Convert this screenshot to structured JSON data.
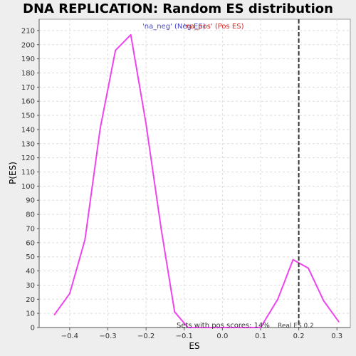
{
  "chart_data": {
    "type": "line",
    "title": "DNA REPLICATION: Random ES distribution",
    "xlabel": "ES",
    "ylabel": "P(ES)",
    "xlim": [
      -0.48,
      0.335
    ],
    "ylim": [
      0,
      218
    ],
    "xticks": [
      -0.4,
      -0.3,
      -0.2,
      -0.1,
      0.0,
      0.1,
      0.2,
      0.3
    ],
    "xtick_labels": [
      "−0.4",
      "−0.3",
      "−0.2",
      "−0.1",
      "0.0",
      "0.1",
      "0.2",
      "0.3"
    ],
    "yticks": [
      0,
      10,
      20,
      30,
      40,
      50,
      60,
      70,
      80,
      90,
      100,
      110,
      120,
      130,
      140,
      150,
      160,
      170,
      180,
      190,
      200,
      210
    ],
    "grid": true,
    "series": [
      {
        "color": "#ee44ee",
        "x": [
          -0.44,
          -0.4,
          -0.36,
          -0.32,
          -0.28,
          -0.24,
          -0.2,
          -0.16,
          -0.125,
          -0.09,
          -0.05,
          0.0,
          0.05,
          0.1,
          0.145,
          0.185,
          0.225,
          0.265,
          0.305
        ],
        "y": [
          9,
          24,
          62,
          141,
          196,
          207,
          144,
          69,
          11,
          0,
          0,
          0,
          0,
          0,
          20,
          48,
          42,
          19,
          4
        ]
      }
    ],
    "legend": {
      "placement": "top-center",
      "entries": [
        {
          "label": "'na_neg' (Neg ES)",
          "color": "#4444cc"
        },
        {
          "label": "'na_pos' (Pos ES)",
          "color": "#dd2222"
        }
      ]
    },
    "vline": {
      "x": 0.2,
      "style": "dashed",
      "color": "#333333"
    },
    "annotations": {
      "pos_scores": "Sets with pos scores: 14%",
      "real_es": "Real ES 0.2"
    }
  }
}
